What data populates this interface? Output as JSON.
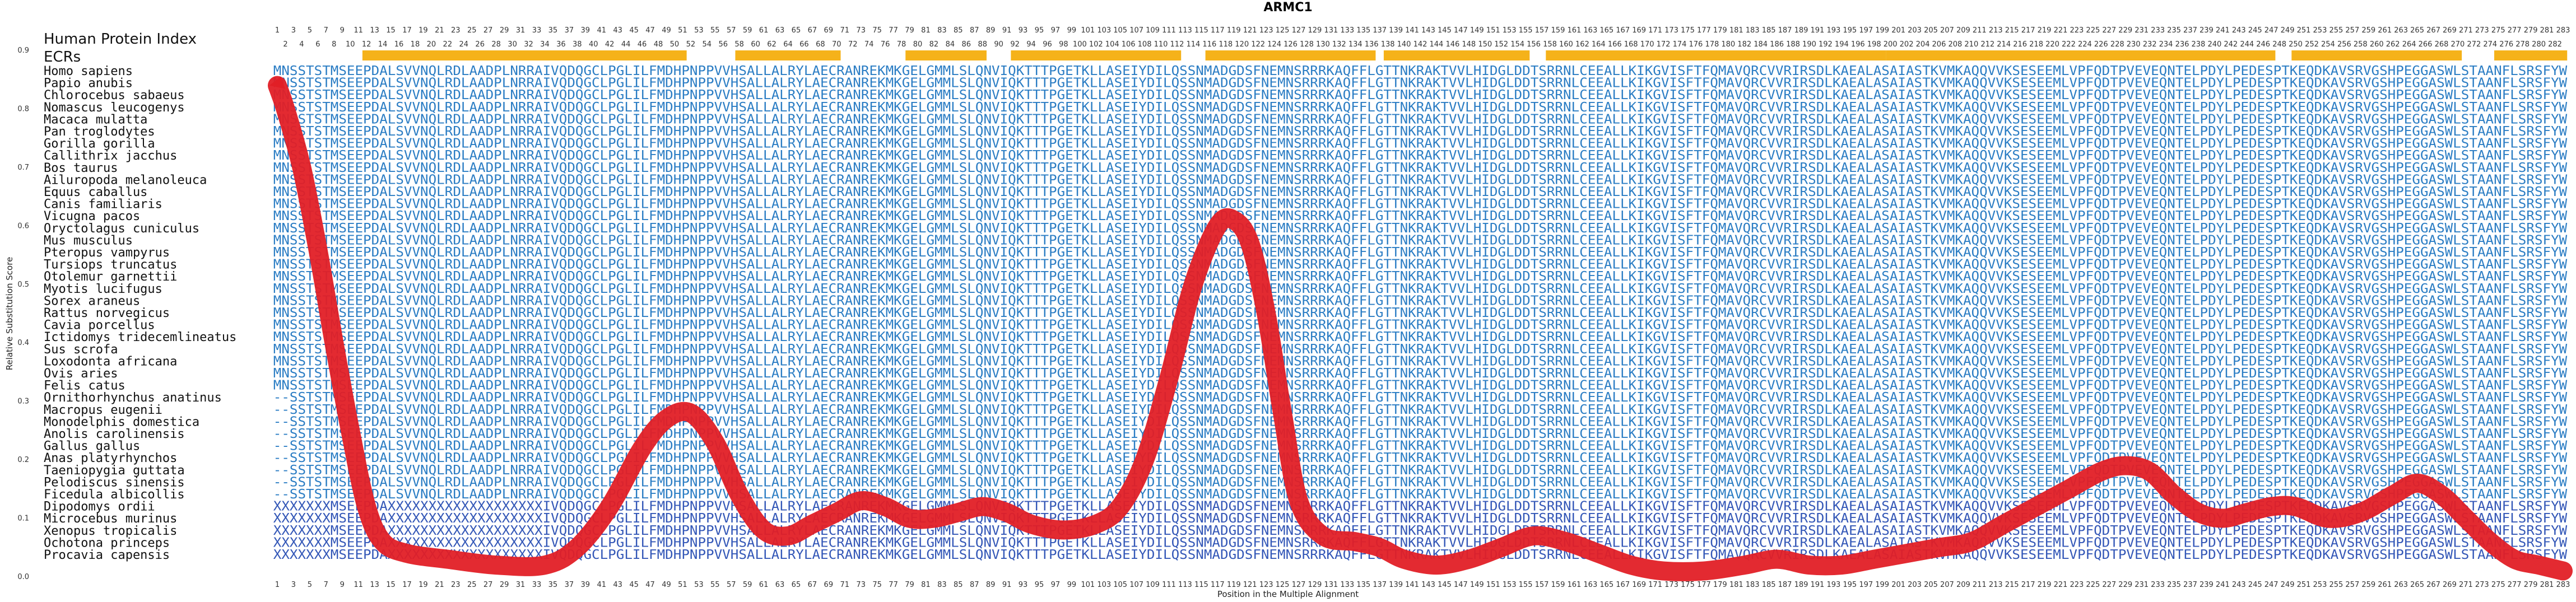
{
  "chart_data": {
    "type": "line",
    "title": "ARMC1",
    "xlabel": "Position in the Multiple Alignment",
    "ylabel": "Relative Substitution Score",
    "xlim": [
      1,
      283
    ],
    "ylim": [
      0.0,
      0.9
    ],
    "yticks": [
      "0.0",
      "0.1",
      "0.2",
      "0.3",
      "0.4",
      "0.5",
      "0.6",
      "0.7",
      "0.8",
      "0.9"
    ],
    "header_rows": [
      "Human Protein Index",
      "ECRs"
    ],
    "species": [
      "Homo sapiens",
      "Papio anubis",
      "Chlorocebus sabaeus",
      "Nomascus leucogenys",
      "Macaca mulatta",
      "Pan troglodytes",
      "Gorilla gorilla",
      "Callithrix jacchus",
      "Bos taurus",
      "Ailuropoda melanoleuca",
      "Equus caballus",
      "Canis familiaris",
      "Vicugna pacos",
      "Oryctolagus cuniculus",
      "Mus musculus",
      "Pteropus vampyrus",
      "Tursiops truncatus",
      "Otolemur garnettii",
      "Myotis lucifugus",
      "Sorex araneus",
      "Rattus norvegicus",
      "Cavia porcellus",
      "Ictidomys tridecemlineatus",
      "Sus scrofa",
      "Loxodonta africana",
      "Ovis aries",
      "Felis catus",
      "Ornithorhynchus anatinus",
      "Macropus eugenii",
      "Monodelphis domestica",
      "Anolis carolinensis",
      "Gallus gallus",
      "Anas platyrhynchos",
      "Taeniopygia guttata",
      "Pelodiscus sinensis",
      "Ficedula albicollis",
      "Dipodomys ordii",
      "Microcebus murinus",
      "Xenopus tropicalis",
      "Ochotona princeps",
      "Procavia capensis"
    ],
    "sequence": "MNSSTSTMSEEPDALSVVNQLRDLAADPLNRRAIVQDQGCLPGLILFMDHPNPPVVHSALLALRYLAECRANREKMKGELGMMLSLQNVIQKTTTPGETKLLASEIYDILQSSNMADGDSFNEMNSRRRKAQFFLGTTNKRAKTVVLHIDGLDDTSRRNLCEEALLKIKGVISFTFQMAVQRCVVRIRSDLKAEALASAIASTKVMKAQQVVKSESEEMLVPFQDTPVEVEQNTELPDYLPEDESPTKEQDKAVSRVGSHPEGGASWLSTAANFLSRSFYW",
    "ecr_segments": [
      [
        12,
        51
      ],
      [
        58,
        70
      ],
      [
        79,
        88
      ],
      [
        92,
        112
      ],
      [
        116,
        136
      ],
      [
        138,
        155
      ],
      [
        158,
        165
      ],
      [
        166,
        199
      ],
      [
        200,
        247
      ],
      [
        250,
        270
      ],
      [
        275,
        283
      ]
    ],
    "curve_points": [
      [
        1,
        0.84
      ],
      [
        2,
        0.8
      ],
      [
        4,
        0.7
      ],
      [
        6,
        0.56
      ],
      [
        8,
        0.4
      ],
      [
        10,
        0.25
      ],
      [
        12,
        0.12
      ],
      [
        14,
        0.06
      ],
      [
        17,
        0.04
      ],
      [
        22,
        0.03
      ],
      [
        28,
        0.02
      ],
      [
        34,
        0.02
      ],
      [
        38,
        0.05
      ],
      [
        42,
        0.12
      ],
      [
        46,
        0.22
      ],
      [
        49,
        0.27
      ],
      [
        52,
        0.28
      ],
      [
        55,
        0.23
      ],
      [
        58,
        0.14
      ],
      [
        61,
        0.08
      ],
      [
        64,
        0.07
      ],
      [
        67,
        0.09
      ],
      [
        70,
        0.11
      ],
      [
        73,
        0.13
      ],
      [
        76,
        0.12
      ],
      [
        79,
        0.1
      ],
      [
        82,
        0.1
      ],
      [
        85,
        0.11
      ],
      [
        88,
        0.12
      ],
      [
        91,
        0.11
      ],
      [
        94,
        0.09
      ],
      [
        98,
        0.08
      ],
      [
        102,
        0.09
      ],
      [
        105,
        0.12
      ],
      [
        108,
        0.2
      ],
      [
        111,
        0.34
      ],
      [
        114,
        0.5
      ],
      [
        117,
        0.6
      ],
      [
        119,
        0.61
      ],
      [
        121,
        0.57
      ],
      [
        123,
        0.45
      ],
      [
        125,
        0.28
      ],
      [
        127,
        0.13
      ],
      [
        130,
        0.07
      ],
      [
        134,
        0.06
      ],
      [
        137,
        0.05
      ],
      [
        140,
        0.03
      ],
      [
        144,
        0.02
      ],
      [
        148,
        0.03
      ],
      [
        152,
        0.05
      ],
      [
        156,
        0.07
      ],
      [
        160,
        0.06
      ],
      [
        164,
        0.04
      ],
      [
        168,
        0.02
      ],
      [
        172,
        0.01
      ],
      [
        177,
        0.01
      ],
      [
        182,
        0.02
      ],
      [
        186,
        0.03
      ],
      [
        190,
        0.02
      ],
      [
        194,
        0.02
      ],
      [
        198,
        0.03
      ],
      [
        202,
        0.04
      ],
      [
        206,
        0.05
      ],
      [
        210,
        0.06
      ],
      [
        214,
        0.09
      ],
      [
        218,
        0.12
      ],
      [
        222,
        0.15
      ],
      [
        226,
        0.18
      ],
      [
        229,
        0.19
      ],
      [
        232,
        0.18
      ],
      [
        235,
        0.14
      ],
      [
        238,
        0.11
      ],
      [
        241,
        0.1
      ],
      [
        244,
        0.11
      ],
      [
        247,
        0.12
      ],
      [
        250,
        0.12
      ],
      [
        254,
        0.1
      ],
      [
        258,
        0.11
      ],
      [
        262,
        0.14
      ],
      [
        265,
        0.16
      ],
      [
        268,
        0.14
      ],
      [
        271,
        0.1
      ],
      [
        274,
        0.06
      ],
      [
        277,
        0.03
      ],
      [
        280,
        0.02
      ],
      [
        283,
        0.01
      ]
    ],
    "colors": {
      "line": "#e11f26",
      "ecr": "#f5b21a",
      "sequence": "#2b7dc4",
      "sequence_gap": "#3357b7"
    }
  }
}
